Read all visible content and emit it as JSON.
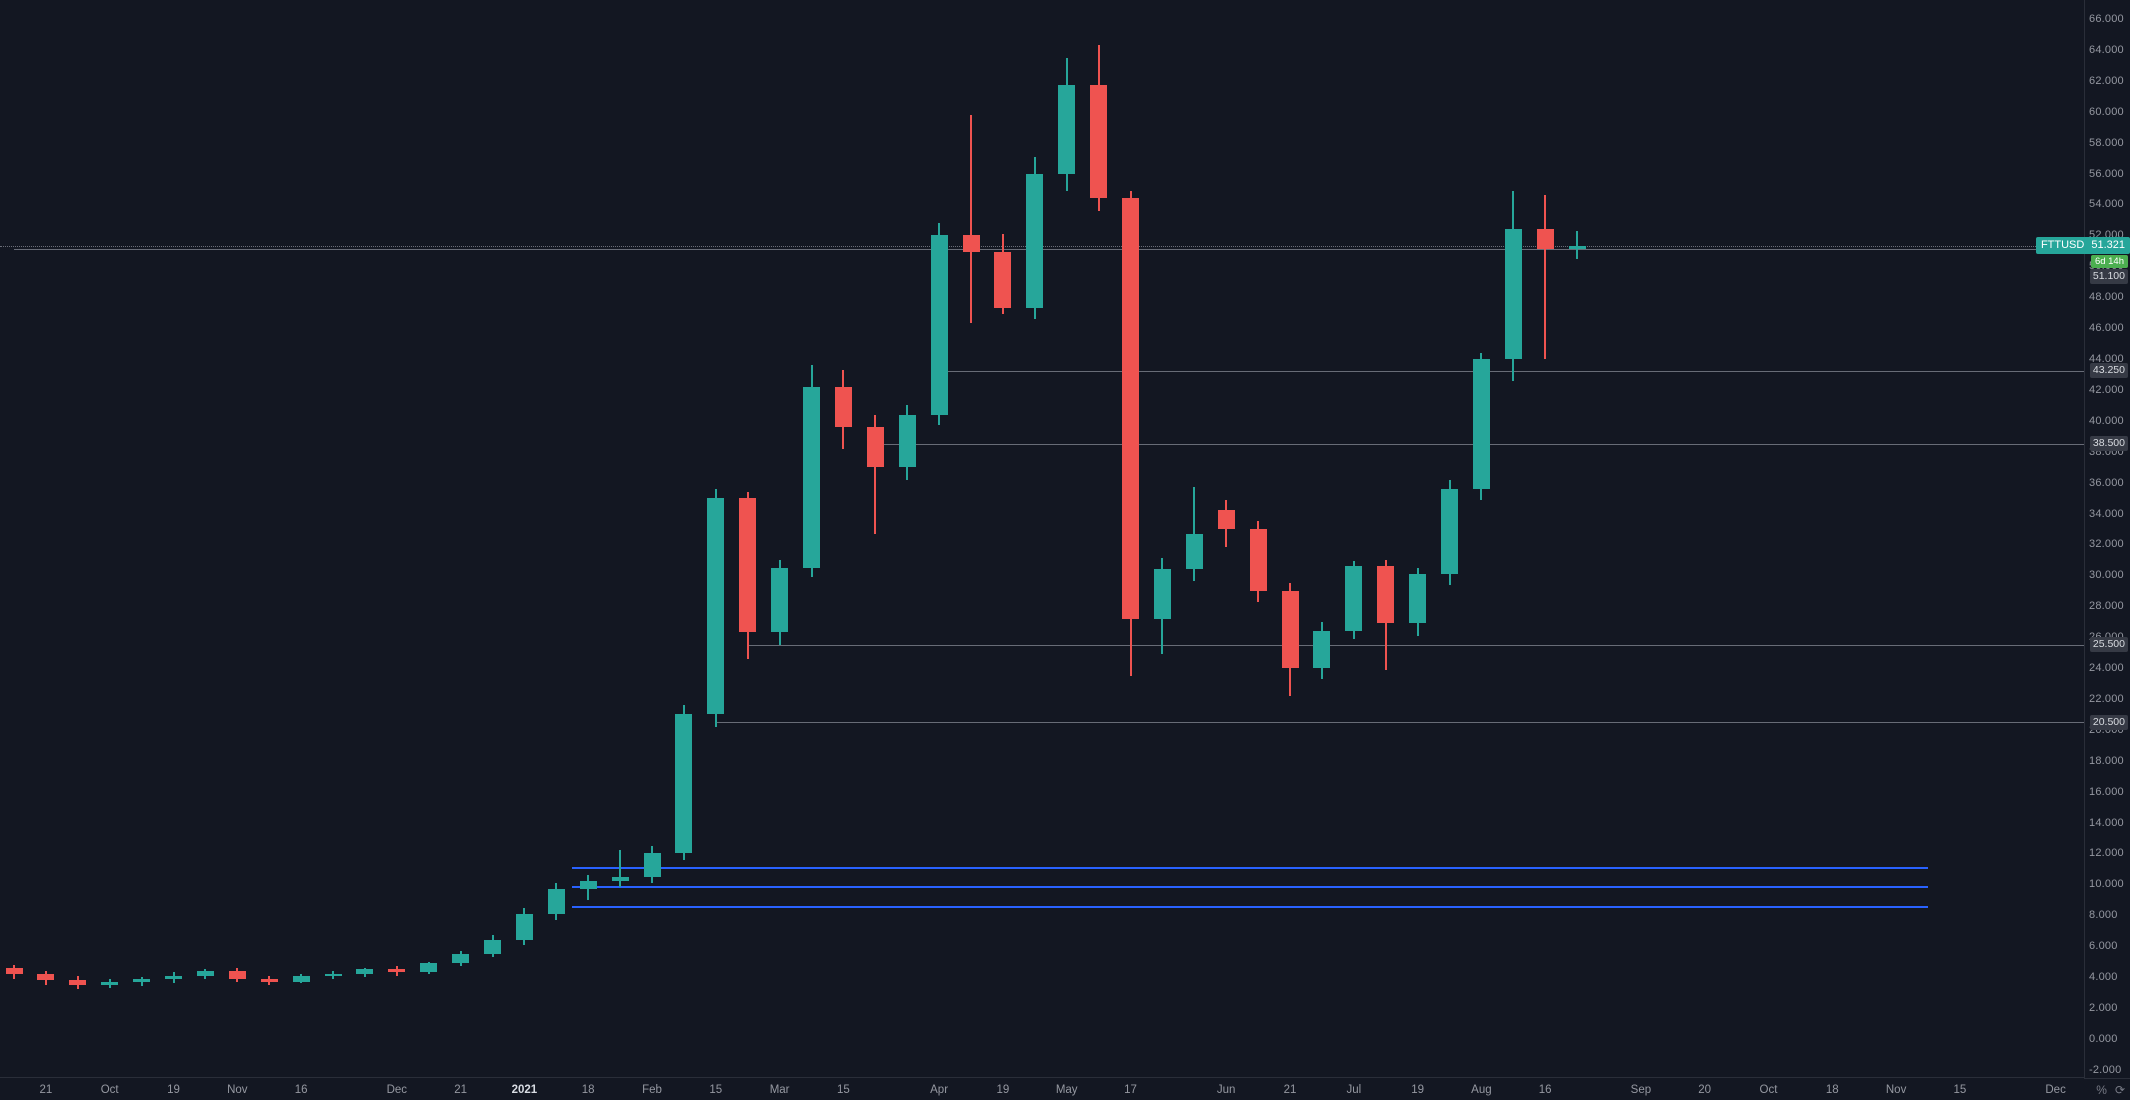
{
  "symbol": "FTTUSD",
  "last_price_label": "51.321",
  "countdown": "6d 14h",
  "icons": {
    "percent": "%",
    "refresh": "⟳"
  },
  "price_axis": {
    "tick_labels": [
      "66.000",
      "64.000",
      "62.000",
      "60.000",
      "58.000",
      "56.000",
      "54.000",
      "52.000",
      "50.000",
      "48.000",
      "46.000",
      "44.000",
      "42.000",
      "40.000",
      "38.000",
      "36.000",
      "34.000",
      "32.000",
      "30.000",
      "28.000",
      "26.000",
      "24.000",
      "22.000",
      "20.000",
      "18.000",
      "16.000",
      "14.000",
      "12.000",
      "10.000",
      "8.000",
      "6.000",
      "4.000",
      "2.000",
      "0.000",
      "-2.000"
    ]
  },
  "time_axis": {
    "labels": [
      {
        "text": "21",
        "idx": 1
      },
      {
        "text": "Oct",
        "idx": 3
      },
      {
        "text": "19",
        "idx": 5
      },
      {
        "text": "Nov",
        "idx": 7
      },
      {
        "text": "16",
        "idx": 9
      },
      {
        "text": "Dec",
        "idx": 12
      },
      {
        "text": "21",
        "idx": 14
      },
      {
        "text": "2021",
        "idx": 16,
        "year": true
      },
      {
        "text": "18",
        "idx": 18
      },
      {
        "text": "Feb",
        "idx": 20
      },
      {
        "text": "15",
        "idx": 22
      },
      {
        "text": "Mar",
        "idx": 24
      },
      {
        "text": "15",
        "idx": 26
      },
      {
        "text": "Apr",
        "idx": 29
      },
      {
        "text": "19",
        "idx": 31
      },
      {
        "text": "May",
        "idx": 33
      },
      {
        "text": "17",
        "idx": 35
      },
      {
        "text": "Jun",
        "idx": 38
      },
      {
        "text": "21",
        "idx": 40
      },
      {
        "text": "Jul",
        "idx": 42
      },
      {
        "text": "19",
        "idx": 44
      },
      {
        "text": "Aug",
        "idx": 46
      },
      {
        "text": "16",
        "idx": 48
      },
      {
        "text": "Sep",
        "idx": 51
      },
      {
        "text": "20",
        "idx": 53
      },
      {
        "text": "Oct",
        "idx": 55
      },
      {
        "text": "18",
        "idx": 57
      },
      {
        "text": "Nov",
        "idx": 59
      },
      {
        "text": "15",
        "idx": 61
      },
      {
        "text": "Dec",
        "idx": 64
      }
    ]
  },
  "chart_data": {
    "type": "candlestick",
    "symbol": "FTTUSD",
    "last_price": 51.321,
    "ylim": [
      -2.53,
      67.23
    ],
    "y_ticks_step": 2,
    "legend_position": "none",
    "grid": false,
    "candles_ohlc": [
      [
        4.6,
        4.8,
        3.9,
        4.2
      ],
      [
        4.2,
        4.4,
        3.5,
        3.8
      ],
      [
        3.8,
        4.1,
        3.2,
        3.5
      ],
      [
        3.5,
        3.9,
        3.3,
        3.7
      ],
      [
        3.7,
        4.0,
        3.4,
        3.9
      ],
      [
        3.9,
        4.3,
        3.6,
        4.1
      ],
      [
        4.1,
        4.5,
        3.9,
        4.4
      ],
      [
        4.4,
        4.6,
        3.7,
        3.9
      ],
      [
        3.9,
        4.1,
        3.5,
        3.7
      ],
      [
        3.7,
        4.2,
        3.6,
        4.1
      ],
      [
        4.1,
        4.4,
        3.9,
        4.2
      ],
      [
        4.2,
        4.6,
        4.0,
        4.5
      ],
      [
        4.5,
        4.7,
        4.1,
        4.3
      ],
      [
        4.3,
        5.0,
        4.2,
        4.9
      ],
      [
        4.9,
        5.7,
        4.7,
        5.5
      ],
      [
        5.5,
        6.7,
        5.3,
        6.4
      ],
      [
        6.4,
        8.5,
        6.1,
        8.1
      ],
      [
        8.1,
        10.1,
        7.7,
        9.7
      ],
      [
        9.7,
        10.6,
        9.0,
        10.2
      ],
      [
        10.2,
        12.2,
        9.8,
        10.5
      ],
      [
        10.5,
        12.5,
        10.1,
        12.0
      ],
      [
        12.0,
        21.6,
        11.6,
        21.0
      ],
      [
        21.0,
        35.6,
        20.2,
        35.0
      ],
      [
        35.0,
        35.4,
        24.6,
        26.3
      ],
      [
        26.3,
        31.0,
        25.5,
        30.5
      ],
      [
        30.5,
        43.6,
        29.9,
        42.2
      ],
      [
        42.2,
        43.3,
        38.2,
        39.6
      ],
      [
        39.6,
        40.4,
        32.7,
        37.0
      ],
      [
        37.0,
        41.0,
        36.2,
        40.4
      ],
      [
        40.4,
        52.8,
        39.7,
        52.0
      ],
      [
        52.0,
        59.8,
        46.3,
        50.9
      ],
      [
        50.9,
        52.1,
        46.9,
        47.3
      ],
      [
        47.3,
        57.1,
        46.6,
        56.0
      ],
      [
        56.0,
        63.5,
        54.9,
        61.7
      ],
      [
        61.7,
        64.3,
        53.6,
        54.4
      ],
      [
        54.4,
        54.9,
        23.5,
        27.2
      ],
      [
        27.2,
        31.1,
        24.9,
        30.4
      ],
      [
        30.4,
        35.7,
        29.6,
        32.7
      ],
      [
        34.2,
        34.9,
        31.8,
        33.0
      ],
      [
        33.0,
        33.5,
        28.3,
        29.0
      ],
      [
        29.0,
        29.5,
        22.2,
        24.0
      ],
      [
        24.0,
        27.0,
        23.3,
        26.4
      ],
      [
        26.4,
        30.9,
        25.9,
        30.6
      ],
      [
        30.6,
        31.0,
        23.9,
        26.9
      ],
      [
        26.9,
        30.5,
        26.1,
        30.1
      ],
      [
        30.1,
        36.2,
        29.4,
        35.6
      ],
      [
        35.6,
        44.4,
        34.9,
        44.0
      ],
      [
        44.0,
        54.9,
        42.6,
        52.4
      ],
      [
        52.4,
        54.6,
        44.0,
        51.1
      ],
      [
        51.1,
        52.3,
        50.5,
        51.321
      ]
    ],
    "horizontal_lines": [
      {
        "price": 51.1,
        "label": "51.100",
        "from_idx": 0
      },
      {
        "price": 43.25,
        "label": "43.250",
        "from_idx": 29
      },
      {
        "price": 38.5,
        "label": "38.500",
        "from_idx": 27
      },
      {
        "price": 25.5,
        "label": "25.500",
        "from_idx": 23
      },
      {
        "price": 20.5,
        "label": "20.500",
        "from_idx": 22
      }
    ],
    "blue_segments": [
      {
        "price": 11.1,
        "from_idx": 17.5,
        "to_idx": 60
      },
      {
        "price": 9.9,
        "from_idx": 17.5,
        "to_idx": 60
      },
      {
        "price": 8.6,
        "from_idx": 17.5,
        "to_idx": 60
      }
    ],
    "colors": {
      "background": "#131722",
      "up": "#26a69a",
      "down": "#ef5350",
      "axis_text": "#9598a1",
      "axis_border": "#2a2e39",
      "drawn_line": "#787b86",
      "blue_line": "#2962ff",
      "label_bg": "#363a45",
      "last_badge_bg": "#26a69a",
      "countdown_bg": "#4caf50"
    }
  }
}
